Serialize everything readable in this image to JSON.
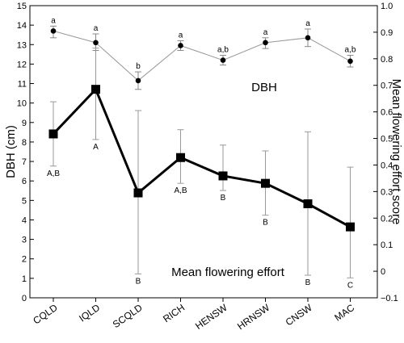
{
  "chart_data": {
    "type": "line",
    "categories": [
      "CQLD",
      "IQLD",
      "SCQLD",
      "RICH",
      "HENSW",
      "HRNSW",
      "CNSW",
      "MAC"
    ],
    "y_left": {
      "label": "DBH (cm)",
      "range": [
        0,
        15
      ],
      "ticks": [
        0,
        1,
        2,
        3,
        4,
        5,
        6,
        7,
        8,
        9,
        10,
        11,
        12,
        13,
        14,
        15
      ]
    },
    "y_right": {
      "label": "Mean flowering effort score",
      "range": [
        -0.1,
        1.0
      ],
      "ticks": [
        "−0.1",
        "0",
        "0.1",
        "0.2",
        "0.3",
        "0.4",
        "0.5",
        "0.6",
        "0.7",
        "0.8",
        "0.9",
        "1.0"
      ]
    },
    "series": [
      {
        "name": "DBH",
        "axis": "left",
        "color": "#999999",
        "marker": "circle",
        "values": [
          13.7,
          13.1,
          11.15,
          12.95,
          12.2,
          13.1,
          13.35,
          12.15
        ],
        "err_low": [
          13.35,
          12.7,
          10.7,
          12.7,
          11.95,
          12.8,
          12.9,
          11.85
        ],
        "err_high": [
          13.95,
          13.55,
          11.6,
          13.2,
          12.45,
          13.35,
          13.8,
          12.45
        ],
        "letters": [
          "a",
          "a",
          "b",
          "a",
          "a,b",
          "a",
          "a",
          "a,b"
        ]
      },
      {
        "name": "Mean flowering effort",
        "axis": "right",
        "color": "#000000",
        "marker": "square",
        "values": [
          0.517,
          0.685,
          0.295,
          0.428,
          0.359,
          0.331,
          0.254,
          0.167
        ],
        "err_low": [
          0.396,
          0.496,
          -0.01,
          0.331,
          0.304,
          0.211,
          -0.015,
          -0.025
        ],
        "err_high": [
          0.638,
          0.84,
          0.605,
          0.533,
          0.475,
          0.453,
          0.525,
          0.392
        ],
        "letters": [
          "A,B",
          "A",
          "B",
          "A,B",
          "B",
          "B",
          "B",
          "C"
        ]
      }
    ]
  }
}
